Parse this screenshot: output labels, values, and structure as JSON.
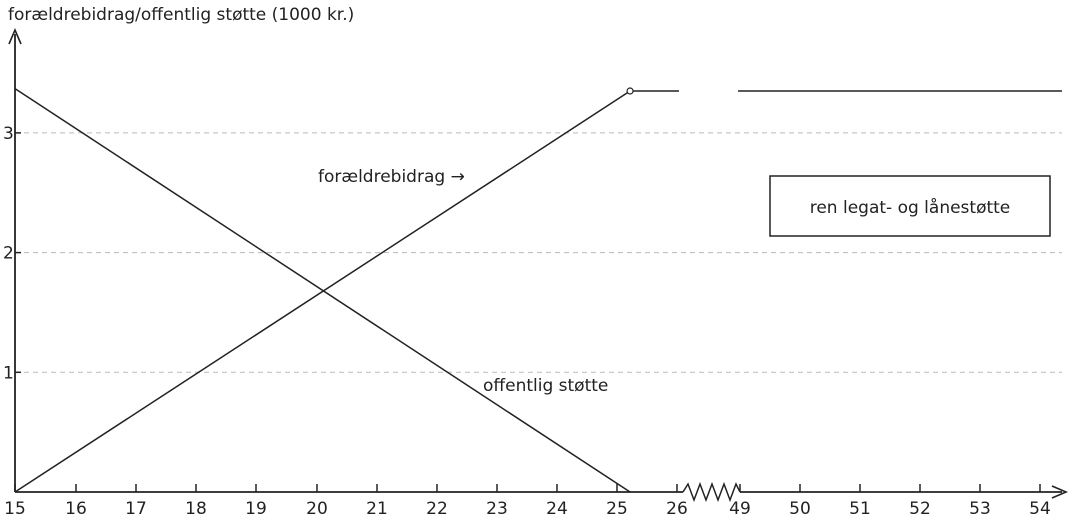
{
  "chart_data": {
    "type": "line",
    "title": "forældrebidrag/offentlig støtte (1000 kr.)",
    "ylabel": "forældrebidrag/offentlig støtte (1000 kr.)",
    "xlabel": "",
    "x_ticks": [
      "15",
      "16",
      "17",
      "18",
      "19",
      "20",
      "21",
      "22",
      "23",
      "24",
      "25",
      "26",
      "49",
      "50",
      "51",
      "52",
      "53",
      "54"
    ],
    "y_ticks": [
      "1",
      "2",
      "3"
    ],
    "ylim": [
      0,
      3.5
    ],
    "grid": "horizontal dashed at y = 1, 2, 3",
    "axis_break": "between 26 and 49",
    "series": [
      {
        "name": "forældrebidrag",
        "points": [
          {
            "x": 15,
            "y": 0
          },
          {
            "x": 25.2,
            "y": 3.35
          }
        ],
        "continuation": [
          {
            "x": 25.2,
            "y": 3.35
          },
          {
            "x": 54,
            "y": 3.35
          }
        ]
      },
      {
        "name": "offentlig støtte",
        "points": [
          {
            "x": 15,
            "y": 3.37
          },
          {
            "x": 25.2,
            "y": 0
          }
        ]
      }
    ],
    "annotations": {
      "foraeldrebidrag": "forældrebidrag →",
      "offentlig": "offentlig støtte",
      "box": "ren legat- og lånestøtte"
    },
    "colors": {
      "line": "#222222",
      "grid": "#bbbbbb"
    }
  }
}
